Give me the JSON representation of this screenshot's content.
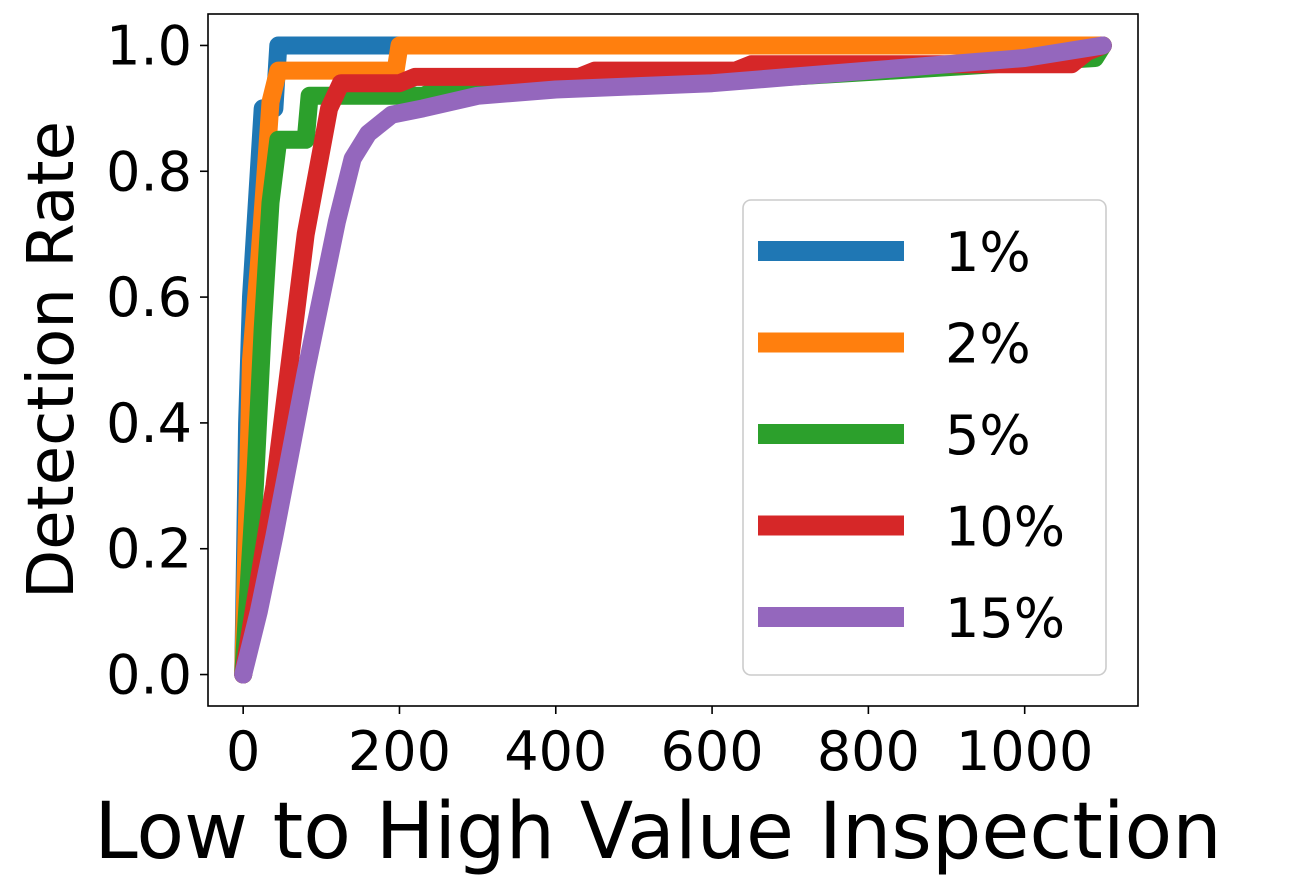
{
  "chart_data": {
    "type": "line",
    "title": "",
    "xlabel": "Low to High Value Inspection",
    "ylabel": "Detection Rate",
    "xlim": [
      -45,
      1145
    ],
    "ylim": [
      -0.05,
      1.05
    ],
    "xticks": [
      0,
      200,
      400,
      600,
      800,
      1000
    ],
    "xtick_labels": [
      "0",
      "200",
      "400",
      "600",
      "800",
      "1000"
    ],
    "yticks": [
      0.0,
      0.2,
      0.4,
      0.6,
      0.8,
      1.0
    ],
    "ytick_labels": [
      "0.0",
      "0.2",
      "0.4",
      "0.6",
      "0.8",
      "1.0"
    ],
    "grid": false,
    "legend_position": "lower-right",
    "series": [
      {
        "name": "1%",
        "color": "#1f77b4",
        "points": [
          [
            0,
            0
          ],
          [
            5,
            0.4
          ],
          [
            10,
            0.6
          ],
          [
            15,
            0.7
          ],
          [
            20,
            0.8
          ],
          [
            25,
            0.9
          ],
          [
            40,
            0.9
          ],
          [
            45,
            1.0
          ],
          [
            1100,
            1.0
          ]
        ]
      },
      {
        "name": "2%",
        "color": "#ff7f0e",
        "points": [
          [
            0,
            0
          ],
          [
            10,
            0.5
          ],
          [
            20,
            0.65
          ],
          [
            30,
            0.82
          ],
          [
            35,
            0.91
          ],
          [
            45,
            0.96
          ],
          [
            195,
            0.96
          ],
          [
            200,
            1.0
          ],
          [
            1100,
            1.0
          ]
        ]
      },
      {
        "name": "5%",
        "color": "#2ca02c",
        "points": [
          [
            0,
            0
          ],
          [
            15,
            0.3
          ],
          [
            25,
            0.55
          ],
          [
            35,
            0.75
          ],
          [
            45,
            0.85
          ],
          [
            80,
            0.85
          ],
          [
            85,
            0.92
          ],
          [
            230,
            0.92
          ],
          [
            250,
            0.93
          ],
          [
            560,
            0.94
          ],
          [
            830,
            0.96
          ],
          [
            1090,
            0.98
          ],
          [
            1100,
            1.0
          ]
        ]
      },
      {
        "name": "10%",
        "color": "#d62728",
        "points": [
          [
            0,
            0
          ],
          [
            20,
            0.15
          ],
          [
            40,
            0.3
          ],
          [
            60,
            0.5
          ],
          [
            80,
            0.7
          ],
          [
            95,
            0.8
          ],
          [
            110,
            0.9
          ],
          [
            125,
            0.94
          ],
          [
            200,
            0.94
          ],
          [
            220,
            0.95
          ],
          [
            430,
            0.95
          ],
          [
            450,
            0.96
          ],
          [
            630,
            0.96
          ],
          [
            650,
            0.97
          ],
          [
            1060,
            0.97
          ],
          [
            1080,
            0.99
          ],
          [
            1100,
            1.0
          ]
        ]
      },
      {
        "name": "15%",
        "color": "#9467bd",
        "points": [
          [
            0,
            0
          ],
          [
            20,
            0.1
          ],
          [
            40,
            0.22
          ],
          [
            60,
            0.35
          ],
          [
            80,
            0.48
          ],
          [
            100,
            0.6
          ],
          [
            120,
            0.72
          ],
          [
            140,
            0.82
          ],
          [
            160,
            0.86
          ],
          [
            190,
            0.89
          ],
          [
            230,
            0.9
          ],
          [
            300,
            0.92
          ],
          [
            400,
            0.93
          ],
          [
            600,
            0.94
          ],
          [
            700,
            0.95
          ],
          [
            800,
            0.96
          ],
          [
            900,
            0.97
          ],
          [
            1000,
            0.98
          ],
          [
            1100,
            1.0
          ]
        ]
      }
    ]
  }
}
